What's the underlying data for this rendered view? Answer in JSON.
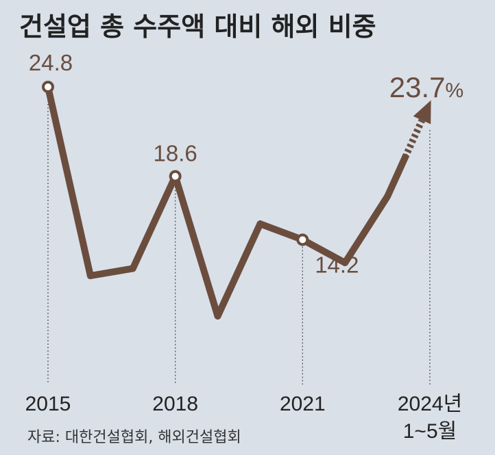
{
  "chart_data": {
    "type": "line",
    "title": "건설업 총 수주액 대비 해외 비중",
    "x_tick_labels": [
      "2015",
      "2018",
      "2021",
      "2024년"
    ],
    "x_tick_sublabel": "1~5월",
    "x": [
      "2015",
      "2016",
      "2017",
      "2018",
      "2019",
      "2020",
      "2021",
      "2022",
      "2023",
      "2024년 1~5월"
    ],
    "values": [
      24.8,
      11.7,
      12.2,
      18.6,
      8.9,
      15.3,
      14.2,
      12.6,
      17.2,
      23.7
    ],
    "labeled_points": [
      {
        "x": "2015",
        "label": "24.8"
      },
      {
        "x": "2018",
        "label": "18.6"
      },
      {
        "x": "2021",
        "label": "14.2"
      },
      {
        "x": "2024년 1~5월",
        "label": "23.7",
        "unit": "%"
      }
    ],
    "last_segment_style": "dashed-arrow",
    "grid": false,
    "line_color": "#6b4d3e",
    "background": "#d9e0e8"
  },
  "source": "자료: 대한건설협회, 해외건설협회"
}
